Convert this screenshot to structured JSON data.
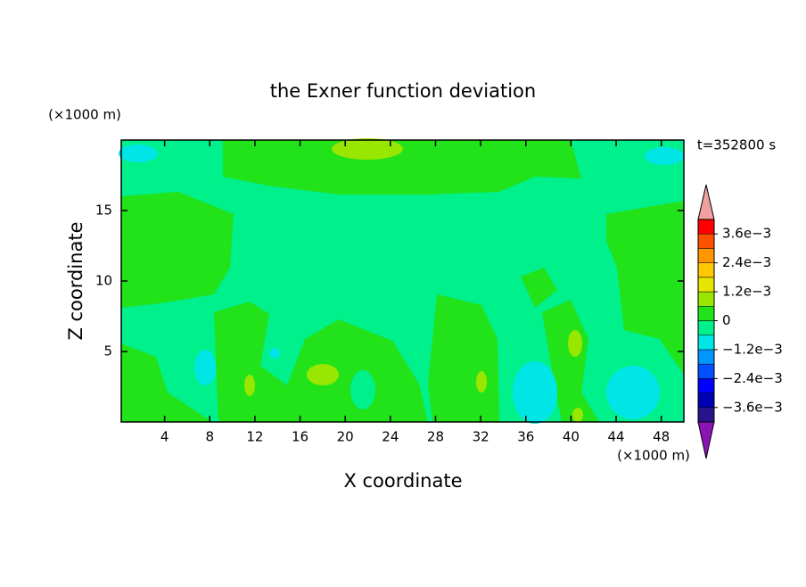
{
  "chart_data": {
    "type": "contour",
    "title": "the Exner function deviation",
    "annotation": "t=352800 s",
    "x_label": "X coordinate",
    "y_label": "Z coordinate",
    "x_unit": "(×1000 m)",
    "y_unit": "(×1000 m)",
    "xlim": [
      0,
      50
    ],
    "xticks": [
      4,
      8,
      12,
      16,
      20,
      24,
      28,
      32,
      36,
      40,
      44,
      48
    ],
    "ylim": [
      0,
      20
    ],
    "yticks": [
      5,
      10,
      15
    ],
    "colorbar": {
      "levels": [
        -0.0042,
        -0.0036,
        -0.003,
        -0.0024,
        -0.0018,
        -0.0012,
        -0.0006,
        0,
        0.0006,
        0.0012,
        0.0018,
        0.0024,
        0.003,
        0.0036,
        0.0042
      ],
      "colors": [
        "#2a148c",
        "#0000b4",
        "#0000ff",
        "#0050ff",
        "#0096ff",
        "#00e6e6",
        "#00f08c",
        "#22e21a",
        "#99e600",
        "#e6e600",
        "#ffc800",
        "#ff9600",
        "#ff5000",
        "#ff0000"
      ],
      "under_color": "#8c14b4",
      "over_color": "#f0a0a0",
      "ticks": [
        {
          "value": -0.0036,
          "label": "−3.6e−3"
        },
        {
          "value": -0.0024,
          "label": "−2.4e−3"
        },
        {
          "value": -0.0012,
          "label": "−1.2e−3"
        },
        0,
        {
          "value": 0.0012,
          "label": "1.2e−3"
        },
        {
          "value": 0.0024,
          "label": "2.4e−3"
        },
        {
          "value": 0.0036,
          "label": "3.6e−3"
        }
      ]
    }
  }
}
